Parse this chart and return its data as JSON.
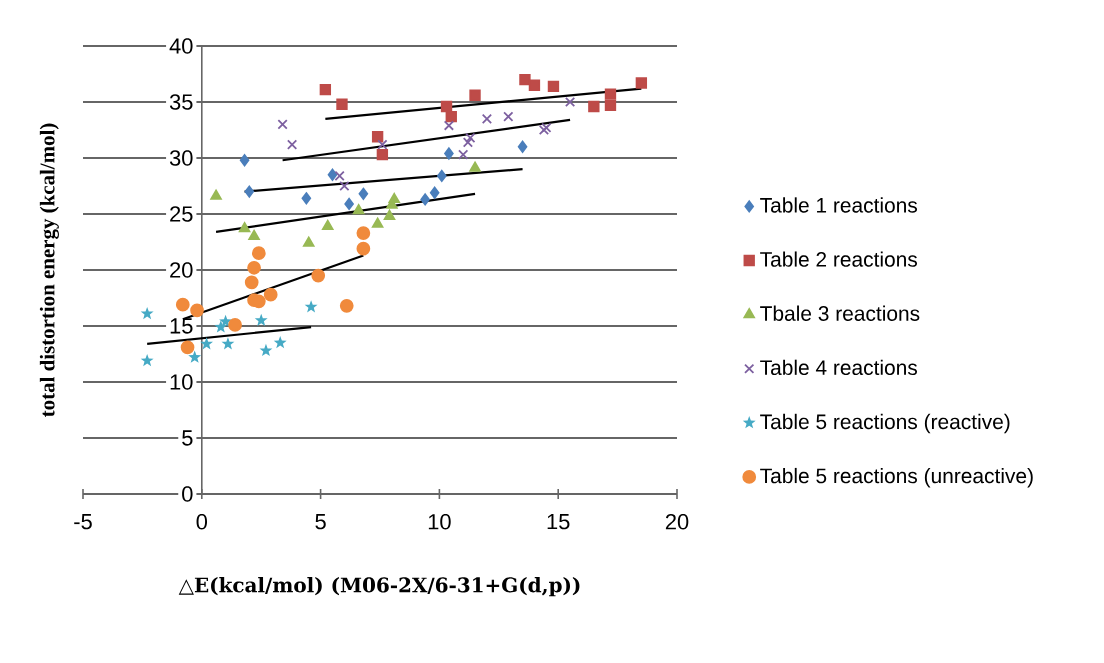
{
  "chart_data": {
    "type": "scatter",
    "xlabel": "△E(kcal/mol) (M06-2X/6-31+G(d,p))",
    "ylabel": "total distortion energy (kcal/mol)",
    "xlim": [
      -5,
      20
    ],
    "xticks": [
      -5,
      0,
      5,
      10,
      15,
      20
    ],
    "ylim": [
      0,
      40
    ],
    "yticks": [
      0,
      5,
      10,
      15,
      20,
      25,
      30,
      35,
      40
    ],
    "grid": "y",
    "legend": "right",
    "series": [
      {
        "name": "Table 1 reactions",
        "color": "#4a7ebb",
        "marker": "diamond",
        "x": [
          1.8,
          2.0,
          4.4,
          5.5,
          6.2,
          6.8,
          9.4,
          9.8,
          10.1,
          10.4,
          13.5
        ],
        "values": [
          29.8,
          27.0,
          26.4,
          28.5,
          25.9,
          26.8,
          26.3,
          26.9,
          28.4,
          30.4,
          31.0
        ]
      },
      {
        "name": "Table 2 reactions",
        "color": "#be4b48",
        "marker": "square",
        "x": [
          5.2,
          5.9,
          7.4,
          7.6,
          10.3,
          10.5,
          11.5,
          13.6,
          14.0,
          14.8,
          16.5,
          17.2,
          17.2,
          18.5
        ],
        "values": [
          36.1,
          34.8,
          31.9,
          30.3,
          34.6,
          33.7,
          35.6,
          37.0,
          36.5,
          36.4,
          34.6,
          34.7,
          35.7,
          36.7
        ]
      },
      {
        "name": "Tbale 3 reactions",
        "color": "#98b954",
        "marker": "triangle",
        "x": [
          0.6,
          1.8,
          2.2,
          4.5,
          5.3,
          6.6,
          7.4,
          7.9,
          8.1,
          8.0,
          11.5
        ],
        "values": [
          26.6,
          23.7,
          23.0,
          22.4,
          23.9,
          25.3,
          24.1,
          24.8,
          26.3,
          25.8,
          29.1
        ]
      },
      {
        "name": "Table 4 reactions",
        "color": "#7d60a0",
        "marker": "cross",
        "x": [
          3.4,
          3.8,
          5.8,
          6.0,
          7.6,
          10.4,
          11.0,
          11.2,
          11.3,
          12.0,
          12.9,
          14.4,
          14.5,
          15.5
        ],
        "values": [
          33.0,
          31.2,
          28.4,
          27.5,
          31.2,
          32.9,
          30.3,
          31.4,
          31.8,
          33.5,
          33.7,
          32.5,
          32.7,
          35.0
        ]
      },
      {
        "name": "Table 5 reactions (reactive)",
        "color": "#46aac5",
        "marker": "star",
        "x": [
          -2.3,
          -2.3,
          -0.3,
          0.2,
          0.8,
          1.0,
          1.1,
          2.5,
          2.7,
          3.3,
          4.6
        ],
        "values": [
          16.1,
          11.9,
          12.2,
          13.4,
          14.9,
          15.4,
          13.4,
          15.5,
          12.8,
          13.5,
          16.7
        ]
      },
      {
        "name": "Table 5 reactions (unreactive)",
        "color": "#f08a3c",
        "marker": "circle",
        "x": [
          -0.8,
          -0.2,
          -0.6,
          1.4,
          2.4,
          2.2,
          2.1,
          2.2,
          2.4,
          2.9,
          4.9,
          6.1,
          6.8,
          6.8
        ],
        "values": [
          16.9,
          16.4,
          13.1,
          15.1,
          21.5,
          20.2,
          18.9,
          17.3,
          17.2,
          17.8,
          19.5,
          16.8,
          23.3,
          21.9
        ]
      },
      {
        "type": "line",
        "color": "#000000",
        "marker": "none",
        "x": [
          1.8,
          13.5
        ],
        "values": [
          27.0,
          29.0
        ]
      },
      {
        "type": "line",
        "color": "#000000",
        "marker": "none",
        "x": [
          5.2,
          18.5
        ],
        "values": [
          33.5,
          36.2
        ]
      },
      {
        "type": "line",
        "color": "#000000",
        "marker": "none",
        "x": [
          0.6,
          11.5
        ],
        "values": [
          23.4,
          26.8
        ]
      },
      {
        "type": "line",
        "color": "#000000",
        "marker": "none",
        "x": [
          3.4,
          15.5
        ],
        "values": [
          29.8,
          33.4
        ]
      },
      {
        "type": "line",
        "color": "#000000",
        "marker": "none",
        "x": [
          -2.3,
          4.6
        ],
        "values": [
          13.4,
          14.9
        ]
      },
      {
        "type": "line",
        "color": "#000000",
        "marker": "none",
        "x": [
          -0.8,
          6.8
        ],
        "values": [
          15.6,
          21.3
        ]
      }
    ]
  }
}
